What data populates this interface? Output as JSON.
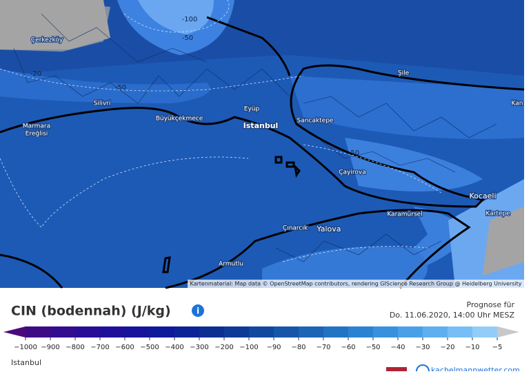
{
  "map": {
    "places": [
      "Çerkezköy",
      "Şile",
      "Kan",
      "Silivri",
      "Marmara",
      "Ereğlisi",
      "Büyükçekmece",
      "Eyüp",
      "Istanbul",
      "Sancaktepe",
      "Çayirova",
      "Kocaeli",
      "Kartepe",
      "Karamürsel",
      "Çınarcık",
      "Yalova",
      "Armutlu"
    ],
    "contours": [
      "-100",
      "-50",
      "-20",
      "-50",
      "-50"
    ],
    "attribution": "Kartenmaterial: Map data © OpenStreetMap contributors, rendering GIScience Research Group @ Heidelberg University"
  },
  "header": {
    "title": "CIN (bodennah) (J/kg)",
    "forecast_label": "Prognose für",
    "forecast_time": "Do. 11.06.2020, 14:00 Uhr MESZ"
  },
  "legend": {
    "labels": [
      "−1000",
      "−900",
      "−800",
      "−700",
      "−600",
      "−500",
      "−400",
      "−300",
      "−200",
      "−100",
      "−90",
      "−80",
      "−70",
      "−60",
      "−50",
      "−40",
      "−30",
      "−20",
      "−10",
      "−5"
    ],
    "colors": [
      "#4b0a7a",
      "#3f0a86",
      "#340c8f",
      "#2a0d96",
      "#1f0f9a",
      "#16139c",
      "#0f1a9a",
      "#0b2396",
      "#0b2e93",
      "#0d3a96",
      "#10489f",
      "#1556a9",
      "#1b64b6",
      "#2173c4",
      "#2a82d2",
      "#3891de",
      "#4aa0e8",
      "#5eaff0",
      "#76bef5",
      "#92cdf8",
      "#b4dcfa"
    ]
  },
  "footer": {
    "location": "Istanbul",
    "logo": "kachelmannwetter.com"
  }
}
